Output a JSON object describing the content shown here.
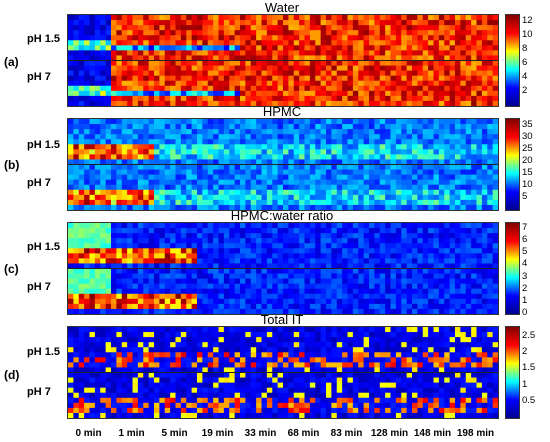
{
  "figure": {
    "time_labels": [
      "0 min",
      "1 min",
      "5 min",
      "19 min",
      "33 min",
      "68 min",
      "83 min",
      "128 min",
      "148 min",
      "198 min"
    ]
  },
  "chart_data": [
    {
      "type": "heatmap",
      "panel_label": "(a)",
      "title": "Water",
      "rows": [
        "pH 1.5",
        "pH 7"
      ],
      "columns": [
        "0 min",
        "1 min",
        "5 min",
        "19 min",
        "33 min",
        "68 min",
        "83 min",
        "128 min",
        "148 min",
        "198 min"
      ],
      "colorbar": {
        "ticks": [
          2,
          4,
          6,
          8,
          10,
          12
        ],
        "range": [
          0,
          13
        ]
      },
      "colormap": "jet",
      "pattern": "water",
      "level": 0.84
    },
    {
      "type": "heatmap",
      "panel_label": "(b)",
      "title": "HPMC",
      "rows": [
        "pH 1.5",
        "pH 7"
      ],
      "columns": [
        "0 min",
        "1 min",
        "5 min",
        "19 min",
        "33 min",
        "68 min",
        "83 min",
        "128 min",
        "148 min",
        "198 min"
      ],
      "colorbar": {
        "ticks": [
          5,
          10,
          15,
          20,
          25,
          30,
          35
        ],
        "range": [
          0,
          38
        ]
      },
      "colormap": "jet",
      "pattern": "hpmc",
      "level": 0.2
    },
    {
      "type": "heatmap",
      "panel_label": "(c)",
      "title": "HPMC:water ratio",
      "rows": [
        "pH 1.5",
        "pH 7"
      ],
      "columns": [
        "0 min",
        "1 min",
        "5 min",
        "19 min",
        "33 min",
        "68 min",
        "83 min",
        "128 min",
        "148 min",
        "198 min"
      ],
      "colorbar": {
        "ticks": [
          0,
          1,
          2,
          3,
          4,
          5,
          6,
          7
        ],
        "range": [
          0,
          7.5
        ]
      },
      "colormap": "jet",
      "pattern": "ratio",
      "level": 0.15
    },
    {
      "type": "heatmap",
      "panel_label": "(d)",
      "title": "Total IT",
      "rows": [
        "pH 1.5",
        "pH 7"
      ],
      "columns": [
        "0 min",
        "1 min",
        "5 min",
        "19 min",
        "33 min",
        "68 min",
        "83 min",
        "128 min",
        "148 min",
        "198 min"
      ],
      "colorbar": {
        "ticks": [
          0.5,
          1,
          1.5,
          2,
          2.5
        ],
        "range": [
          0,
          2.8
        ]
      },
      "colormap": "jet",
      "pattern": "it",
      "level": 0.12
    }
  ]
}
